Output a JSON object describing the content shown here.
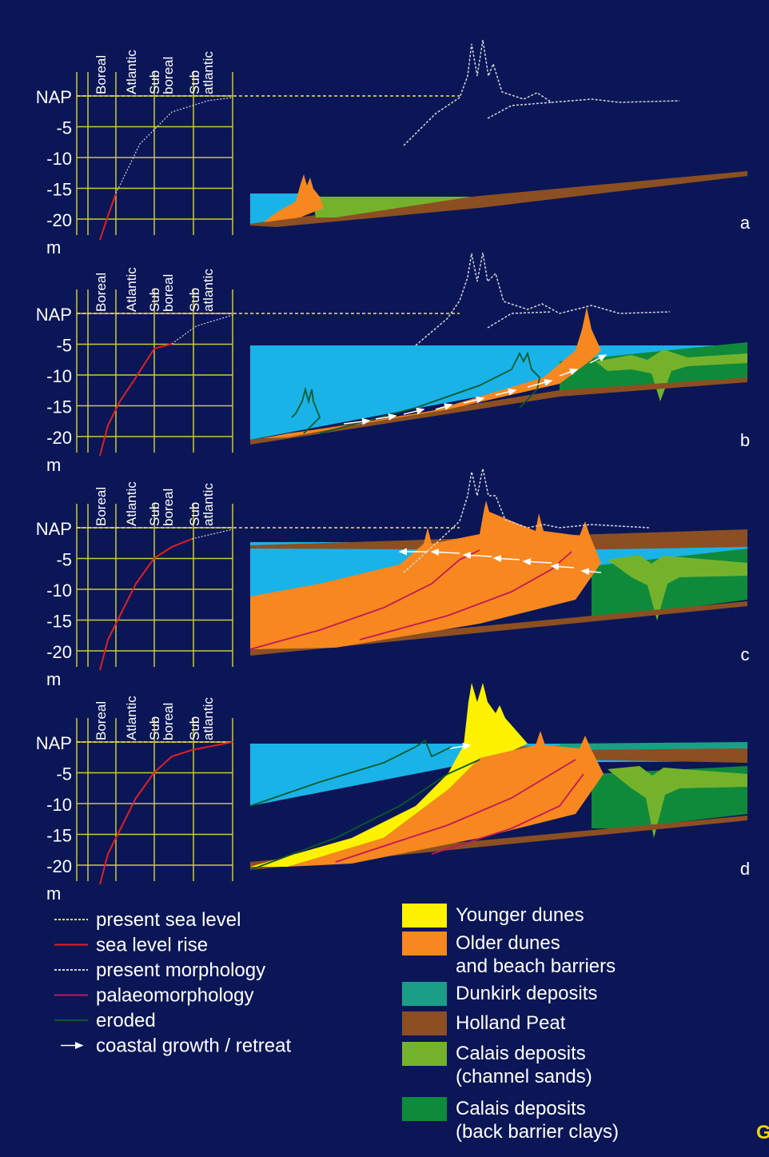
{
  "colors": {
    "background": "#0b1657",
    "grid": "#c9c93a",
    "sea": "#19b3e8",
    "younger_dunes": "#fff200",
    "older_dunes": "#f7871f",
    "dunkirk": "#1a9f86",
    "holland_peat": "#8b4f22",
    "calais_channel": "#75b22c",
    "calais_clays": "#0f8a3a",
    "sea_level_rise": "#e0201f",
    "palaeomorphology": "#c0185a",
    "eroded": "#0b5a2a",
    "present_sea_level": "#f4e84a",
    "present_morphology": "#d7d7d7",
    "text": "#ffffff",
    "corner_letter": "#f4d400"
  },
  "axis": {
    "levels": [
      "NAP",
      "-5",
      "-10",
      "-15",
      "-20"
    ],
    "unit": "m",
    "periods": [
      "Boreal",
      "Atlantic",
      "Sub\nboreal",
      "Sub\natlantic"
    ]
  },
  "panels": [
    {
      "letter": "a",
      "sea_level_depth": -15
    },
    {
      "letter": "b",
      "sea_level_depth": -5
    },
    {
      "letter": "c",
      "sea_level_depth": -2
    },
    {
      "letter": "d",
      "sea_level_depth": 0
    }
  ],
  "legend_lines": [
    {
      "label": "present sea level",
      "style": "present-sea-level"
    },
    {
      "label": "sea level rise",
      "style": "sea-level-rise"
    },
    {
      "label": "present morphology",
      "style": "present-morphology"
    },
    {
      "label": "palaeomorphology",
      "style": "palaeomorphology"
    },
    {
      "label": "eroded",
      "style": "eroded"
    },
    {
      "label": "coastal growth / retreat",
      "style": "arrow"
    }
  ],
  "legend_colors": [
    {
      "label": "Younger dunes",
      "color": "#fff200"
    },
    {
      "label": "Older dunes\nand beach barriers",
      "color": "#f7871f"
    },
    {
      "label": "Dunkirk deposits",
      "color": "#1a9f86"
    },
    {
      "label": "Holland Peat",
      "color": "#8b4f22"
    },
    {
      "label": "Calais deposits\n(channel sands)",
      "color": "#75b22c"
    },
    {
      "label": "Calais deposits\n(back barrier clays)",
      "color": "#0f8a3a"
    }
  ],
  "corner_text": "G"
}
